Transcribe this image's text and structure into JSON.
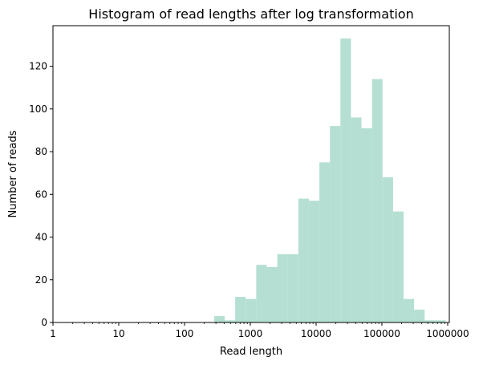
{
  "chart_data": {
    "type": "bar",
    "title": "Histogram of read lengths after log transformation",
    "xlabel": "Read length",
    "ylabel": "Number of reads",
    "x_scale": "log10",
    "xlim": [
      1,
      1000000
    ],
    "ylim": [
      0,
      139
    ],
    "x_ticks": [
      1,
      10,
      100,
      1000,
      10000,
      100000,
      1000000
    ],
    "x_tick_labels": [
      "1",
      "10",
      "100",
      "1000",
      "10000",
      "100000",
      "1000000"
    ],
    "y_ticks": [
      0,
      20,
      40,
      60,
      80,
      100,
      120
    ],
    "y_tick_labels": [
      "0",
      "20",
      "40",
      "60",
      "80",
      "100",
      "120"
    ],
    "bar_color": "#b5dfd2",
    "grid": false,
    "bins": [
      {
        "x0": 282,
        "x1": 407,
        "count": 3
      },
      {
        "x0": 407,
        "x1": 589,
        "count": 1
      },
      {
        "x0": 589,
        "x1": 851,
        "count": 12
      },
      {
        "x0": 851,
        "x1": 1230,
        "count": 11
      },
      {
        "x0": 1230,
        "x1": 1778,
        "count": 27
      },
      {
        "x0": 1778,
        "x1": 2570,
        "count": 26
      },
      {
        "x0": 2570,
        "x1": 3715,
        "count": 32
      },
      {
        "x0": 3715,
        "x1": 5370,
        "count": 32
      },
      {
        "x0": 5370,
        "x1": 7762,
        "count": 58
      },
      {
        "x0": 7762,
        "x1": 11220,
        "count": 57
      },
      {
        "x0": 11220,
        "x1": 16218,
        "count": 75
      },
      {
        "x0": 16218,
        "x1": 23442,
        "count": 92
      },
      {
        "x0": 23442,
        "x1": 33884,
        "count": 133
      },
      {
        "x0": 33884,
        "x1": 48978,
        "count": 96
      },
      {
        "x0": 48978,
        "x1": 70795,
        "count": 91
      },
      {
        "x0": 70795,
        "x1": 102329,
        "count": 114
      },
      {
        "x0": 102329,
        "x1": 147911,
        "count": 68
      },
      {
        "x0": 147911,
        "x1": 213796,
        "count": 52
      },
      {
        "x0": 213796,
        "x1": 309030,
        "count": 11
      },
      {
        "x0": 309030,
        "x1": 446684,
        "count": 6
      },
      {
        "x0": 446684,
        "x1": 645654,
        "count": 1
      },
      {
        "x0": 645654,
        "x1": 933254,
        "count": 1
      }
    ]
  }
}
